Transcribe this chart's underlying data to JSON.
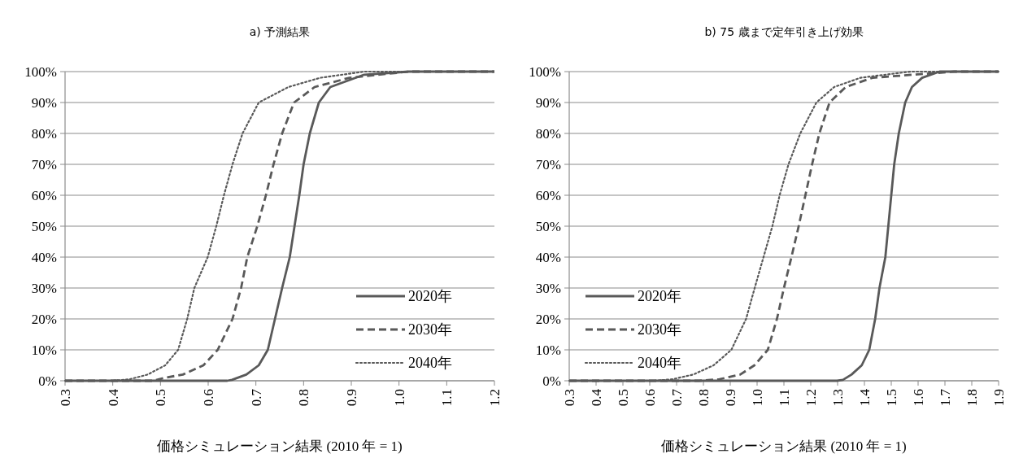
{
  "chart_data": [
    {
      "type": "line",
      "title": "a) 予測結果",
      "xlabel": "価格シミュレーション結果 (2010 年 = 1)",
      "xlim": [
        0.3,
        1.2
      ],
      "xticks": [
        {
          "value": 0.3,
          "label": "0.3"
        },
        {
          "value": 0.4,
          "label": "0.4"
        },
        {
          "value": 0.5,
          "label": "0.5"
        },
        {
          "value": 0.6,
          "label": "0.6"
        },
        {
          "value": 0.7,
          "label": "0.7"
        },
        {
          "value": 0.8,
          "label": "0.8"
        },
        {
          "value": 0.9,
          "label": "0.9"
        },
        {
          "value": 1.0,
          "label": "1.0"
        },
        {
          "value": 1.1,
          "label": "1.1"
        },
        {
          "value": 1.2,
          "label": "1.2"
        }
      ],
      "ylim": [
        0,
        100
      ],
      "yticks": [
        {
          "value": 0,
          "label": "0%"
        },
        {
          "value": 10,
          "label": "10%"
        },
        {
          "value": 20,
          "label": "20%"
        },
        {
          "value": 30,
          "label": "30%"
        },
        {
          "value": 40,
          "label": "40%"
        },
        {
          "value": 50,
          "label": "50%"
        },
        {
          "value": 60,
          "label": "60%"
        },
        {
          "value": 70,
          "label": "70%"
        },
        {
          "value": 80,
          "label": "80%"
        },
        {
          "value": 90,
          "label": "90%"
        },
        {
          "value": 100,
          "label": "100%"
        }
      ],
      "grid": "y",
      "legend": "bottom right",
      "marker": "none",
      "series": [
        {
          "name": "2020年",
          "color": "#595959",
          "line_style": "solid",
          "x": [
            0.3,
            0.64,
            0.65,
            0.68,
            0.706,
            0.725,
            0.74,
            0.755,
            0.771,
            0.781,
            0.791,
            0.8,
            0.813,
            0.832,
            0.856,
            0.927,
            1.02,
            1.2
          ],
          "values": [
            0,
            0,
            0.3,
            2,
            5,
            10,
            20,
            30,
            40,
            50,
            60,
            70,
            80,
            90,
            95,
            99,
            100,
            100
          ]
        },
        {
          "name": "2030年",
          "color": "#595959",
          "line_style": "dashed",
          "x": [
            0.3,
            0.485,
            0.51,
            0.547,
            0.59,
            0.62,
            0.651,
            0.669,
            0.682,
            0.703,
            0.721,
            0.737,
            0.755,
            0.78,
            0.823,
            0.896,
            1.02,
            1.2
          ],
          "values": [
            0,
            0,
            1,
            2,
            5,
            10,
            20,
            30,
            40,
            50,
            60,
            70,
            80,
            90,
            95,
            98,
            100,
            100
          ]
        },
        {
          "name": "2040年",
          "color": "#595959",
          "line_style": "dotted",
          "x": [
            0.3,
            0.4,
            0.436,
            0.473,
            0.51,
            0.537,
            0.556,
            0.571,
            0.599,
            0.617,
            0.633,
            0.651,
            0.672,
            0.706,
            0.768,
            0.835,
            0.927,
            1.2
          ],
          "values": [
            0,
            0,
            0.5,
            2,
            5,
            10,
            20,
            30,
            40,
            50,
            60,
            70,
            80,
            90,
            95,
            98,
            100,
            100
          ]
        }
      ]
    },
    {
      "type": "line",
      "title": "b) 75 歳まで定年引き上げ効果",
      "xlabel": "価格シミュレーション結果 (2010 年 = 1)",
      "xlim": [
        0.3,
        1.9
      ],
      "xticks": [
        {
          "value": 0.3,
          "label": "0.3"
        },
        {
          "value": 0.4,
          "label": "0.4"
        },
        {
          "value": 0.5,
          "label": "0.5"
        },
        {
          "value": 0.6,
          "label": "0.6"
        },
        {
          "value": 0.7,
          "label": "0.7"
        },
        {
          "value": 0.8,
          "label": "0.8"
        },
        {
          "value": 0.9,
          "label": "0.9"
        },
        {
          "value": 1.0,
          "label": "1.0"
        },
        {
          "value": 1.1,
          "label": "1.1"
        },
        {
          "value": 1.2,
          "label": "1.2"
        },
        {
          "value": 1.3,
          "label": "1.3"
        },
        {
          "value": 1.4,
          "label": "1.4"
        },
        {
          "value": 1.5,
          "label": "1.5"
        },
        {
          "value": 1.6,
          "label": "1.6"
        },
        {
          "value": 1.7,
          "label": "1.7"
        },
        {
          "value": 1.8,
          "label": "1.8"
        },
        {
          "value": 1.9,
          "label": "1.9"
        }
      ],
      "ylim": [
        0,
        100
      ],
      "yticks": [
        {
          "value": 0,
          "label": "0%"
        },
        {
          "value": 10,
          "label": "10%"
        },
        {
          "value": 20,
          "label": "20%"
        },
        {
          "value": 30,
          "label": "30%"
        },
        {
          "value": 40,
          "label": "40%"
        },
        {
          "value": 50,
          "label": "50%"
        },
        {
          "value": 60,
          "label": "60%"
        },
        {
          "value": 70,
          "label": "70%"
        },
        {
          "value": 80,
          "label": "80%"
        },
        {
          "value": 90,
          "label": "90%"
        },
        {
          "value": 100,
          "label": "100%"
        }
      ],
      "grid": "y",
      "legend": "bottom left",
      "marker": "none",
      "series": [
        {
          "name": "2020年",
          "color": "#595959",
          "line_style": "solid",
          "x": [
            0.3,
            1.298,
            1.32,
            1.352,
            1.39,
            1.418,
            1.44,
            1.456,
            1.478,
            1.489,
            1.5,
            1.511,
            1.528,
            1.552,
            1.577,
            1.615,
            1.68,
            1.9
          ],
          "values": [
            0,
            0,
            0.3,
            2,
            5,
            10,
            20,
            30,
            40,
            50,
            60,
            70,
            80,
            90,
            95,
            98,
            100,
            100
          ]
        },
        {
          "name": "2030年",
          "color": "#595959",
          "line_style": "dashed",
          "x": [
            0.3,
            0.784,
            0.86,
            0.937,
            0.99,
            1.04,
            1.074,
            1.1,
            1.128,
            1.155,
            1.18,
            1.205,
            1.232,
            1.27,
            1.33,
            1.43,
            1.735,
            1.9
          ],
          "values": [
            0,
            0,
            0.5,
            2,
            5,
            10,
            20,
            30,
            40,
            50,
            60,
            70,
            80,
            90,
            95,
            98,
            100,
            100
          ]
        },
        {
          "name": "2040年",
          "color": "#595959",
          "line_style": "dotted",
          "x": [
            0.3,
            0.619,
            0.685,
            0.762,
            0.838,
            0.904,
            0.959,
            0.991,
            1.024,
            1.057,
            1.084,
            1.117,
            1.161,
            1.221,
            1.287,
            1.385,
            1.571,
            1.9
          ],
          "values": [
            0,
            0,
            0.5,
            2,
            5,
            10,
            20,
            30,
            40,
            50,
            60,
            70,
            80,
            90,
            95,
            98,
            100,
            100
          ]
        }
      ]
    }
  ]
}
